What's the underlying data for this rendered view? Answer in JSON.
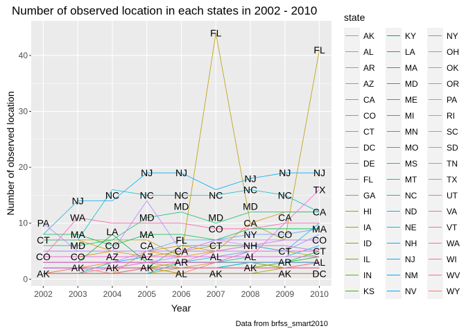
{
  "chart_data": {
    "type": "line",
    "title": "Number of observed location in each states in 2002 - 2010",
    "xlabel": "Year",
    "ylabel": "Number of observed location",
    "caption": "Data from brfss_smart2010",
    "legend_title": "state",
    "x": [
      2002,
      2003,
      2004,
      2005,
      2006,
      2007,
      2008,
      2009,
      2010
    ],
    "xlim": [
      2001.65,
      2010.35
    ],
    "ylim": [
      -1.2,
      46.2
    ],
    "y_ticks": [
      0,
      10,
      20,
      30,
      40
    ],
    "grid": true,
    "legend_position": "right",
    "series": [
      {
        "name": "AK",
        "color": "#F8766D",
        "values": [
          1,
          2,
          1,
          2,
          1,
          1,
          1,
          1,
          1
        ]
      },
      {
        "name": "AL",
        "color": "#F47A5E",
        "values": [
          1,
          1,
          1,
          2,
          1,
          3,
          3,
          2,
          3
        ]
      },
      {
        "name": "AR",
        "color": "#EF7F4E",
        "values": [
          1,
          2,
          2,
          2,
          3,
          3,
          3,
          3,
          3
        ]
      },
      {
        "name": "AZ",
        "color": "#E98435",
        "values": [
          2,
          2,
          3,
          3,
          2,
          3,
          3,
          2,
          3
        ]
      },
      {
        "name": "CA",
        "color": "#E58700",
        "values": [
          1,
          1,
          1,
          5,
          4,
          5,
          10,
          12,
          12
        ]
      },
      {
        "name": "CO",
        "color": "#DE8C00",
        "values": [
          4,
          4,
          5,
          4,
          5,
          6,
          6,
          7,
          7
        ]
      },
      {
        "name": "CT",
        "color": "#D59100",
        "values": [
          7,
          7,
          5,
          5,
          6,
          5,
          6,
          5,
          5
        ]
      },
      {
        "name": "DC",
        "color": "#CC9600",
        "values": [
          1,
          1,
          1,
          2,
          1,
          1,
          1,
          1,
          1
        ]
      },
      {
        "name": "DE",
        "color": "#C49A00",
        "values": [
          3,
          3,
          3,
          3,
          3,
          3,
          3,
          3,
          3
        ]
      },
      {
        "name": "FL",
        "color": "#BA9E00",
        "values": [
          7,
          7,
          7,
          7,
          4,
          44,
          10,
          7,
          41
        ]
      },
      {
        "name": "GA",
        "color": "#B0A200",
        "values": [
          5,
          5,
          5,
          5,
          5,
          5,
          5,
          5,
          4
        ]
      },
      {
        "name": "HI",
        "color": "#A3A500",
        "values": [
          1,
          1,
          1,
          1,
          2,
          2,
          2,
          3,
          3
        ]
      },
      {
        "name": "IA",
        "color": "#95A900",
        "values": [
          1,
          1,
          1,
          1,
          1,
          1,
          1,
          2,
          2
        ]
      },
      {
        "name": "ID",
        "color": "#86AC00",
        "values": [
          2,
          2,
          2,
          2,
          3,
          3,
          3,
          2,
          2
        ]
      },
      {
        "name": "IL",
        "color": "#75AF00",
        "values": [
          2,
          2,
          2,
          2,
          2,
          2,
          2,
          2,
          2
        ]
      },
      {
        "name": "IN",
        "color": "#5EB300",
        "values": [
          1,
          1,
          1,
          2,
          2,
          2,
          2,
          3,
          3
        ]
      },
      {
        "name": "KS",
        "color": "#3DB600",
        "values": [
          3,
          3,
          3,
          3,
          3,
          3,
          3,
          3,
          3
        ]
      },
      {
        "name": "KY",
        "color": "#00B81F",
        "values": [
          2,
          2,
          2,
          2,
          2,
          2,
          3,
          3,
          4
        ]
      },
      {
        "name": "LA",
        "color": "#00BA38",
        "values": [
          3,
          3,
          8,
          3,
          3,
          3,
          3,
          3,
          5
        ]
      },
      {
        "name": "MA",
        "color": "#00BC50",
        "values": [
          8,
          8,
          6,
          8,
          8,
          7,
          9,
          9,
          9
        ]
      },
      {
        "name": "MD",
        "color": "#00BD64",
        "values": [
          6,
          6,
          7,
          11,
          12,
          10,
          12,
          12,
          12
        ]
      },
      {
        "name": "ME",
        "color": "#00BF77",
        "values": [
          2,
          2,
          2,
          2,
          6,
          6,
          6,
          6,
          5
        ]
      },
      {
        "name": "MI",
        "color": "#00C088",
        "values": [
          4,
          4,
          4,
          4,
          4,
          4,
          4,
          4,
          4
        ]
      },
      {
        "name": "MN",
        "color": "#00C098",
        "values": [
          2,
          2,
          2,
          3,
          3,
          3,
          5,
          5,
          5
        ]
      },
      {
        "name": "MO",
        "color": "#00C1A8",
        "values": [
          1,
          1,
          3,
          3,
          3,
          3,
          4,
          4,
          4
        ]
      },
      {
        "name": "MS",
        "color": "#00C0B8",
        "values": [
          2,
          2,
          2,
          2,
          2,
          2,
          3,
          3,
          3
        ]
      },
      {
        "name": "MT",
        "color": "#00BFC4",
        "values": [
          1,
          1,
          1,
          1,
          1,
          1,
          1,
          1,
          1
        ]
      },
      {
        "name": "NC",
        "color": "#00BDD1",
        "values": [
          7,
          7,
          16,
          15,
          15,
          15,
          16,
          15,
          12
        ]
      },
      {
        "name": "ND",
        "color": "#00BBDC",
        "values": [
          2,
          2,
          2,
          2,
          2,
          2,
          3,
          3,
          3
        ]
      },
      {
        "name": "NE",
        "color": "#00B8E7",
        "values": [
          1,
          1,
          1,
          1,
          3,
          4,
          5,
          5,
          10
        ]
      },
      {
        "name": "NH",
        "color": "#00B4EF",
        "values": [
          5,
          5,
          5,
          5,
          5,
          5,
          6,
          5,
          5
        ]
      },
      {
        "name": "NJ",
        "color": "#00AFF6",
        "values": [
          8,
          14,
          14,
          19,
          19,
          16,
          18,
          19,
          19
        ]
      },
      {
        "name": "NM",
        "color": "#00A9FC",
        "values": [
          3,
          3,
          3,
          4,
          4,
          4,
          4,
          4,
          6
        ]
      },
      {
        "name": "NV",
        "color": "#00A5FF",
        "values": [
          2,
          2,
          2,
          2,
          2,
          2,
          2,
          2,
          2
        ]
      },
      {
        "name": "NY",
        "color": "#619CFF",
        "values": [
          5,
          5,
          5,
          5,
          7,
          7,
          8,
          8,
          9
        ]
      },
      {
        "name": "OH",
        "color": "#7F96FF",
        "values": [
          4,
          4,
          4,
          4,
          4,
          4,
          5,
          5,
          8
        ]
      },
      {
        "name": "OK",
        "color": "#9590FF",
        "values": [
          3,
          3,
          3,
          3,
          3,
          3,
          3,
          3,
          3
        ]
      },
      {
        "name": "OR",
        "color": "#A58AFF",
        "values": [
          3,
          3,
          3,
          3,
          4,
          4,
          4,
          4,
          4
        ]
      },
      {
        "name": "PA",
        "color": "#B983FF",
        "values": [
          10,
          5,
          5,
          14,
          5,
          7,
          6,
          7,
          7
        ]
      },
      {
        "name": "RI",
        "color": "#C77CFF",
        "values": [
          5,
          5,
          5,
          5,
          5,
          5,
          5,
          5,
          5
        ]
      },
      {
        "name": "SC",
        "color": "#D476FF",
        "values": [
          3,
          3,
          3,
          5,
          5,
          7,
          7,
          7,
          7
        ]
      },
      {
        "name": "SD",
        "color": "#E06FFA",
        "values": [
          2,
          2,
          2,
          2,
          2,
          2,
          2,
          2,
          2
        ]
      },
      {
        "name": "TN",
        "color": "#E96AF0",
        "values": [
          2,
          2,
          2,
          2,
          2,
          2,
          2,
          2,
          2
        ]
      },
      {
        "name": "TX",
        "color": "#F365E6",
        "values": [
          4,
          4,
          4,
          4,
          4,
          4,
          4,
          10,
          16
        ]
      },
      {
        "name": "UT",
        "color": "#F962DD",
        "values": [
          2,
          2,
          2,
          3,
          3,
          5,
          6,
          6,
          5
        ]
      },
      {
        "name": "VA",
        "color": "#FC61C9",
        "values": [
          4,
          4,
          4,
          4,
          4,
          4,
          4,
          4,
          4
        ]
      },
      {
        "name": "VT",
        "color": "#FF61C3",
        "values": [
          3,
          3,
          3,
          3,
          3,
          3,
          5,
          5,
          5
        ]
      },
      {
        "name": "WA",
        "color": "#FF64B0",
        "values": [
          4,
          11,
          10,
          10,
          10,
          9,
          9,
          10,
          10
        ]
      },
      {
        "name": "WI",
        "color": "#FF6A98",
        "values": [
          1,
          1,
          1,
          2,
          2,
          2,
          2,
          2,
          2
        ]
      },
      {
        "name": "WV",
        "color": "#FD6E86",
        "values": [
          1,
          1,
          2,
          2,
          2,
          2,
          2,
          2,
          3
        ]
      },
      {
        "name": "WY",
        "color": "#F8766D",
        "values": [
          1,
          1,
          1,
          1,
          1,
          1,
          1,
          1,
          1
        ]
      }
    ],
    "annotations": [
      {
        "label": "PA",
        "x": 2002,
        "y": 10
      },
      {
        "label": "CT",
        "x": 2002,
        "y": 7
      },
      {
        "label": "CO",
        "x": 2002,
        "y": 4
      },
      {
        "label": "AK",
        "x": 2002,
        "y": 1
      },
      {
        "label": "NJ",
        "x": 2003,
        "y": 14
      },
      {
        "label": "WA",
        "x": 2003,
        "y": 11
      },
      {
        "label": "MA",
        "x": 2003,
        "y": 8
      },
      {
        "label": "MD",
        "x": 2003,
        "y": 6
      },
      {
        "label": "CO",
        "x": 2003,
        "y": 4
      },
      {
        "label": "AK",
        "x": 2003,
        "y": 2
      },
      {
        "label": "NC",
        "x": 2004,
        "y": 15
      },
      {
        "label": "LA",
        "x": 2004,
        "y": 8.5
      },
      {
        "label": "CO",
        "x": 2004,
        "y": 6
      },
      {
        "label": "AZ",
        "x": 2004,
        "y": 4
      },
      {
        "label": "AK",
        "x": 2004,
        "y": 2
      },
      {
        "label": "NJ",
        "x": 2005,
        "y": 19
      },
      {
        "label": "NC",
        "x": 2005,
        "y": 15
      },
      {
        "label": "MD",
        "x": 2005,
        "y": 11
      },
      {
        "label": "MA",
        "x": 2005,
        "y": 8
      },
      {
        "label": "CA",
        "x": 2005,
        "y": 6
      },
      {
        "label": "AZ",
        "x": 2005,
        "y": 4
      },
      {
        "label": "AK",
        "x": 2005,
        "y": 2
      },
      {
        "label": "NJ",
        "x": 2006,
        "y": 19
      },
      {
        "label": "NC",
        "x": 2006,
        "y": 15
      },
      {
        "label": "MD",
        "x": 2006,
        "y": 13
      },
      {
        "label": "FL",
        "x": 2006,
        "y": 7
      },
      {
        "label": "CA",
        "x": 2006,
        "y": 5
      },
      {
        "label": "AR",
        "x": 2006,
        "y": 3
      },
      {
        "label": "AL",
        "x": 2006,
        "y": 1
      },
      {
        "label": "FL",
        "x": 2007,
        "y": 44
      },
      {
        "label": "NC",
        "x": 2007,
        "y": 15
      },
      {
        "label": "MD",
        "x": 2007,
        "y": 11
      },
      {
        "label": "CO",
        "x": 2007,
        "y": 9
      },
      {
        "label": "CT",
        "x": 2007,
        "y": 6
      },
      {
        "label": "AL",
        "x": 2007,
        "y": 4
      },
      {
        "label": "AK",
        "x": 2007,
        "y": 1
      },
      {
        "label": "NJ",
        "x": 2008,
        "y": 18
      },
      {
        "label": "NC",
        "x": 2008,
        "y": 16
      },
      {
        "label": "MD",
        "x": 2008,
        "y": 13
      },
      {
        "label": "CA",
        "x": 2008,
        "y": 10
      },
      {
        "label": "NY",
        "x": 2008,
        "y": 8
      },
      {
        "label": "NH",
        "x": 2008,
        "y": 6
      },
      {
        "label": "AL",
        "x": 2008,
        "y": 4
      },
      {
        "label": "AK",
        "x": 2008,
        "y": 2
      },
      {
        "label": "NJ",
        "x": 2009,
        "y": 19
      },
      {
        "label": "NC",
        "x": 2009,
        "y": 15
      },
      {
        "label": "CA",
        "x": 2009,
        "y": 11
      },
      {
        "label": "CO",
        "x": 2009,
        "y": 8
      },
      {
        "label": "CT",
        "x": 2009,
        "y": 5
      },
      {
        "label": "AR",
        "x": 2009,
        "y": 3
      },
      {
        "label": "AK",
        "x": 2009,
        "y": 1
      },
      {
        "label": "FL",
        "x": 2010,
        "y": 41
      },
      {
        "label": "NJ",
        "x": 2010,
        "y": 19
      },
      {
        "label": "TX",
        "x": 2010,
        "y": 16
      },
      {
        "label": "CA",
        "x": 2010,
        "y": 12
      },
      {
        "label": "MA",
        "x": 2010,
        "y": 9
      },
      {
        "label": "CO",
        "x": 2010,
        "y": 7
      },
      {
        "label": "CT",
        "x": 2010,
        "y": 5
      },
      {
        "label": "AL",
        "x": 2010,
        "y": 3
      },
      {
        "label": "DC",
        "x": 2010,
        "y": 1
      }
    ]
  }
}
